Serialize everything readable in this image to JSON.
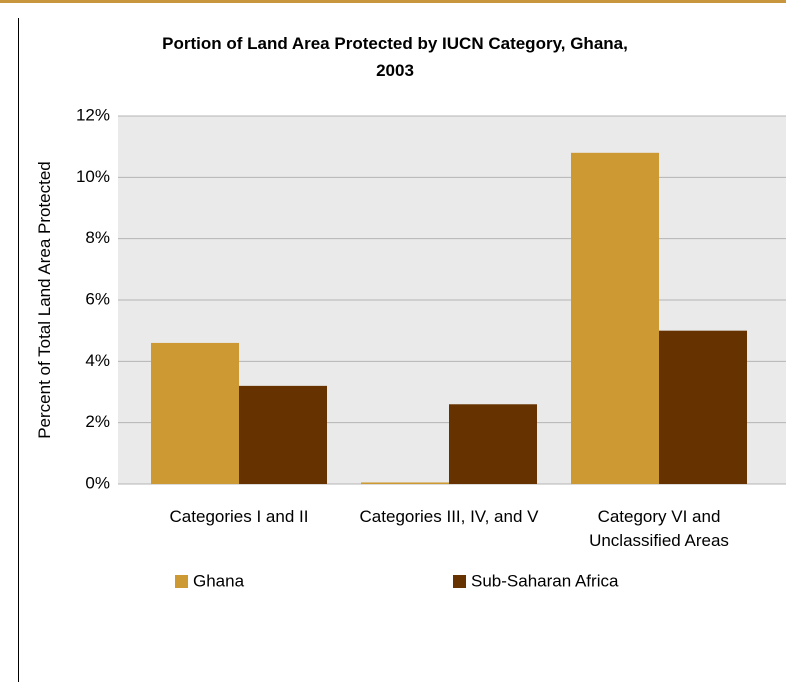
{
  "chart_data": {
    "type": "bar",
    "title": "Portion of Land Area Protected by IUCN Category, Ghana, 2003",
    "y_label": "Percent of Total Land Area Protected",
    "categories": [
      "Categories I and II",
      "Categories III, IV, and V",
      "Category VI and Unclassified Areas"
    ],
    "series": [
      {
        "name": "Ghana",
        "color": "#cc9933",
        "values": [
          4.6,
          0.05,
          10.8
        ]
      },
      {
        "name": "Sub-Saharan Africa",
        "color": "#663300",
        "values": [
          3.2,
          2.6,
          5.0
        ]
      }
    ],
    "ylim": [
      0,
      12
    ],
    "yticks": [
      {
        "value": 0,
        "label": "0%"
      },
      {
        "value": 2,
        "label": "2%"
      },
      {
        "value": 4,
        "label": "4%"
      },
      {
        "value": 6,
        "label": "6%"
      },
      {
        "value": 8,
        "label": "8%"
      },
      {
        "value": 10,
        "label": "10%"
      },
      {
        "value": 12,
        "label": "12%"
      }
    ],
    "grid": true
  }
}
